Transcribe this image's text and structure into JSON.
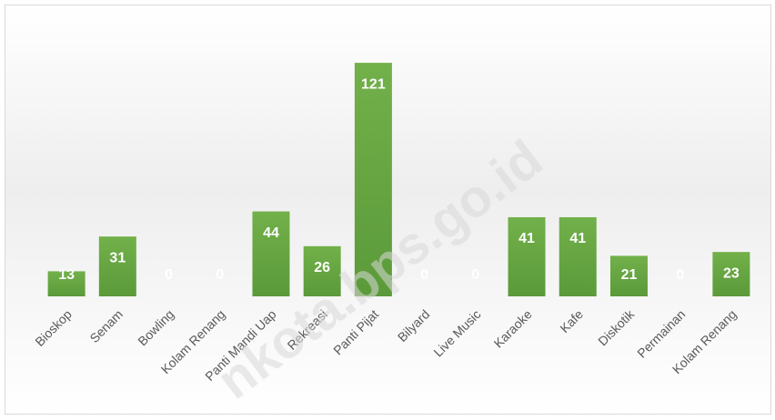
{
  "chart_data": {
    "type": "bar",
    "categories": [
      "Bioskop",
      "Senam",
      "Bowling",
      "Kolam Renang",
      "Panti Mandi Uap",
      "Rekreasi",
      "Panti Pijat",
      "Bilyard",
      "Live Music",
      "Karaoke",
      "Kafe",
      "Diskotik",
      "Permainan",
      "Kolam Renang"
    ],
    "values": [
      13,
      31,
      0,
      0,
      44,
      26,
      121,
      0,
      0,
      41,
      41,
      21,
      0,
      23
    ],
    "color": "#70ad47",
    "ylim": [
      0,
      130
    ],
    "watermark": "nkota.bps.go.id"
  }
}
